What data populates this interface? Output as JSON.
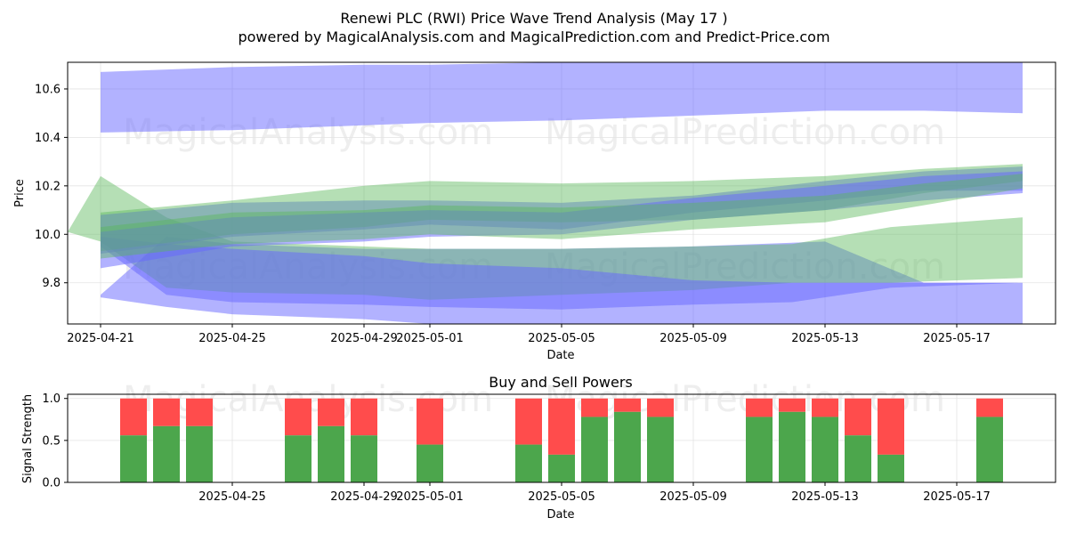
{
  "title": "Renewi PLC (RWI) Price Wave Trend Analysis (May 17 )",
  "subtitle": "powered by MagicalAnalysis.com and MagicalPrediction.com and Predict-Price.com",
  "watermarks": [
    "MagicalAnalysis.com",
    "MagicalPrediction.com"
  ],
  "colors": {
    "blue": "#6666ff",
    "green": "#5cb85c",
    "buy": "#4ca64c",
    "sell": "#ff4c4c"
  },
  "chart_data": [
    {
      "type": "area",
      "name": "price-wave",
      "xlabel": "Date",
      "ylabel": "Price",
      "x_ticks": [
        "2025-04-21",
        "2025-04-25",
        "2025-04-29",
        "2025-05-01",
        "2025-05-05",
        "2025-05-09",
        "2025-05-13",
        "2025-05-17"
      ],
      "y_ticks": [
        "9.8",
        "10.0",
        "10.2",
        "10.4",
        "10.6"
      ],
      "xlim": [
        "2025-04-20",
        "2025-05-20"
      ],
      "ylim": [
        9.63,
        10.71
      ],
      "grid": true,
      "bands": [
        {
          "color": "blue",
          "x": [
            "2025-04-21",
            "2025-04-25",
            "2025-04-29",
            "2025-05-01",
            "2025-05-05",
            "2025-05-09",
            "2025-05-13",
            "2025-05-16",
            "2025-05-19"
          ],
          "upper": [
            10.67,
            10.69,
            10.7,
            10.7,
            10.71,
            10.72,
            10.73,
            10.73,
            10.73
          ],
          "lower": [
            10.42,
            10.43,
            10.45,
            10.46,
            10.47,
            10.49,
            10.51,
            10.51,
            10.5
          ]
        },
        {
          "color": "blue",
          "x": [
            "2025-04-21",
            "2025-04-23",
            "2025-04-25",
            "2025-04-29",
            "2025-05-01",
            "2025-05-05",
            "2025-05-09",
            "2025-05-13",
            "2025-05-16",
            "2025-05-19"
          ],
          "upper": [
            9.75,
            9.99,
            9.96,
            9.94,
            9.94,
            9.94,
            9.95,
            9.97,
            9.8,
            9.8
          ],
          "lower": [
            9.74,
            9.7,
            9.67,
            9.65,
            9.63,
            9.62,
            9.62,
            9.62,
            9.62,
            9.62
          ]
        },
        {
          "color": "green",
          "x": [
            "2025-04-20",
            "2025-04-21",
            "2025-04-23",
            "2025-04-25",
            "2025-04-29",
            "2025-05-01",
            "2025-05-05",
            "2025-05-09",
            "2025-05-12",
            "2025-05-15",
            "2025-05-19"
          ],
          "upper": [
            10.01,
            10.24,
            10.07,
            9.97,
            9.95,
            9.94,
            9.94,
            9.95,
            9.96,
            10.03,
            10.07
          ],
          "lower": [
            10.01,
            9.97,
            9.78,
            9.76,
            9.75,
            9.73,
            9.75,
            9.77,
            9.8,
            9.8,
            9.82
          ]
        },
        {
          "color": "blue",
          "x": [
            "2025-04-21",
            "2025-04-23",
            "2025-04-25",
            "2025-04-29",
            "2025-05-01",
            "2025-05-05",
            "2025-05-09",
            "2025-05-12",
            "2025-05-15",
            "2025-05-19"
          ],
          "upper": [
            9.99,
            9.96,
            9.94,
            9.91,
            9.88,
            9.86,
            9.81,
            9.8,
            9.8,
            9.8
          ],
          "lower": [
            9.95,
            9.75,
            9.72,
            9.71,
            9.7,
            9.69,
            9.71,
            9.72,
            9.78,
            9.8
          ]
        },
        {
          "color": "blue",
          "x": [
            "2025-04-21",
            "2025-04-25",
            "2025-04-29",
            "2025-05-01",
            "2025-05-05",
            "2025-05-09",
            "2025-05-13",
            "2025-05-16",
            "2025-05-19"
          ],
          "upper": [
            10.08,
            10.13,
            10.14,
            10.14,
            10.13,
            10.16,
            10.22,
            10.26,
            10.28
          ],
          "lower": [
            9.92,
            9.99,
            10.02,
            10.04,
            10.02,
            10.09,
            10.14,
            10.18,
            10.18
          ]
        },
        {
          "color": "green",
          "x": [
            "2025-04-21",
            "2025-04-25",
            "2025-04-29",
            "2025-05-01",
            "2025-05-05",
            "2025-05-09",
            "2025-05-13",
            "2025-05-16",
            "2025-05-19"
          ],
          "upper": [
            10.09,
            10.14,
            10.2,
            10.22,
            10.21,
            10.22,
            10.24,
            10.27,
            10.29
          ],
          "lower": [
            9.93,
            10.0,
            10.03,
            10.06,
            10.05,
            10.06,
            10.1,
            10.17,
            10.22
          ]
        },
        {
          "color": "blue",
          "x": [
            "2025-04-21",
            "2025-04-25",
            "2025-04-29",
            "2025-05-01",
            "2025-05-05",
            "2025-05-09",
            "2025-05-13",
            "2025-05-16",
            "2025-05-19"
          ],
          "upper": [
            10.01,
            10.07,
            10.09,
            10.1,
            10.09,
            10.15,
            10.2,
            10.24,
            10.26
          ],
          "lower": [
            9.86,
            9.95,
            9.97,
            9.99,
            10.0,
            10.06,
            10.1,
            10.14,
            10.17
          ]
        },
        {
          "color": "green",
          "x": [
            "2025-04-21",
            "2025-04-25",
            "2025-04-29",
            "2025-05-01",
            "2025-05-05",
            "2025-05-09",
            "2025-05-13",
            "2025-05-16",
            "2025-05-19"
          ],
          "upper": [
            10.03,
            10.09,
            10.1,
            10.12,
            10.11,
            10.13,
            10.16,
            10.21,
            10.25
          ],
          "lower": [
            9.9,
            9.96,
            9.98,
            10.0,
            9.98,
            10.02,
            10.05,
            10.12,
            10.19
          ]
        }
      ]
    },
    {
      "type": "bar",
      "name": "buy-sell-powers",
      "title": "Buy and Sell Powers",
      "xlabel": "Date",
      "ylabel": "Signal Strength",
      "x_ticks": [
        "2025-04-25",
        "2025-04-29",
        "2025-05-01",
        "2025-05-05",
        "2025-05-09",
        "2025-05-13",
        "2025-05-17"
      ],
      "y_ticks": [
        "0.0",
        "0.5",
        "1.0"
      ],
      "xlim": [
        "2025-04-20",
        "2025-05-20"
      ],
      "ylim": [
        0,
        1.05
      ],
      "grid": true,
      "series": [
        {
          "name": "buy",
          "color": "buy"
        },
        {
          "name": "sell",
          "color": "sell"
        }
      ],
      "bars": [
        {
          "date": "2025-04-22",
          "buy": 0.56
        },
        {
          "date": "2025-04-23",
          "buy": 0.67
        },
        {
          "date": "2025-04-24",
          "buy": 0.67
        },
        {
          "date": "2025-04-27",
          "buy": 0.56
        },
        {
          "date": "2025-04-28",
          "buy": 0.67
        },
        {
          "date": "2025-04-29",
          "buy": 0.56
        },
        {
          "date": "2025-05-01",
          "buy": 0.45
        },
        {
          "date": "2025-05-04",
          "buy": 0.45
        },
        {
          "date": "2025-05-05",
          "buy": 0.33
        },
        {
          "date": "2025-05-06",
          "buy": 0.78
        },
        {
          "date": "2025-05-07",
          "buy": 0.84
        },
        {
          "date": "2025-05-08",
          "buy": 0.78
        },
        {
          "date": "2025-05-11",
          "buy": 0.78
        },
        {
          "date": "2025-05-12",
          "buy": 0.84
        },
        {
          "date": "2025-05-13",
          "buy": 0.78
        },
        {
          "date": "2025-05-14",
          "buy": 0.56
        },
        {
          "date": "2025-05-15",
          "buy": 0.33
        },
        {
          "date": "2025-05-18",
          "buy": 0.78
        }
      ]
    }
  ]
}
